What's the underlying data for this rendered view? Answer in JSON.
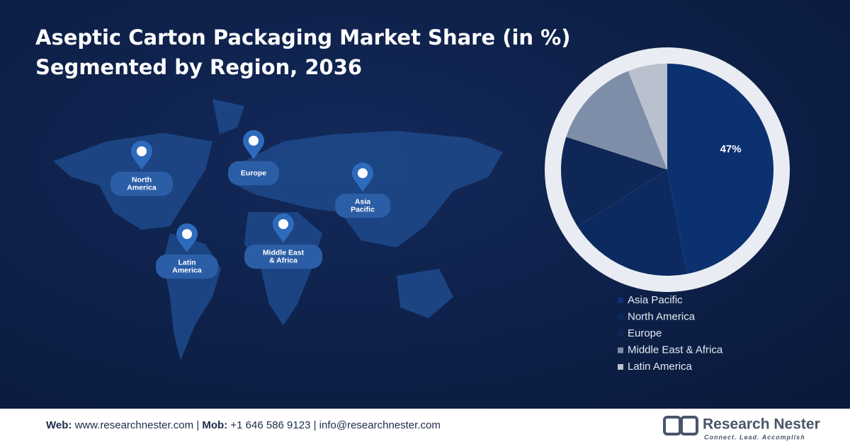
{
  "chart_data": {
    "type": "pie",
    "title": "Aseptic Carton Packaging Market Share (in %)",
    "subtitle": "Segmented by Region, 2036",
    "categories": [
      "Asia Pacific",
      "North America",
      "Europe",
      "Middle East & Africa",
      "Latin America"
    ],
    "values": [
      47,
      19,
      14,
      14,
      6
    ],
    "value_labels": [
      "47%",
      null,
      null,
      null,
      null
    ],
    "colors": [
      "#0b3170",
      "#0c2a60",
      "#0f2757",
      "#7f8ea8",
      "#b9c1cf"
    ],
    "legend": "bottom"
  },
  "map_labels": [
    [
      "North",
      "America"
    ],
    [
      "Europe"
    ],
    [
      "Asia",
      "Pacific"
    ],
    [
      "Latin",
      "America"
    ],
    [
      "Middle East",
      "& Africa"
    ]
  ],
  "footer": {
    "web_label": "Web:",
    "web": "www.researchnester.com",
    "sep1": "|",
    "mob_label": "Mob:",
    "mob": "+1 646 586 9123",
    "sep2": "|",
    "email": "info@researchnester.com"
  },
  "logo": {
    "name": "Research Nester",
    "tagline": "Connect. Lead. Accomplish"
  }
}
